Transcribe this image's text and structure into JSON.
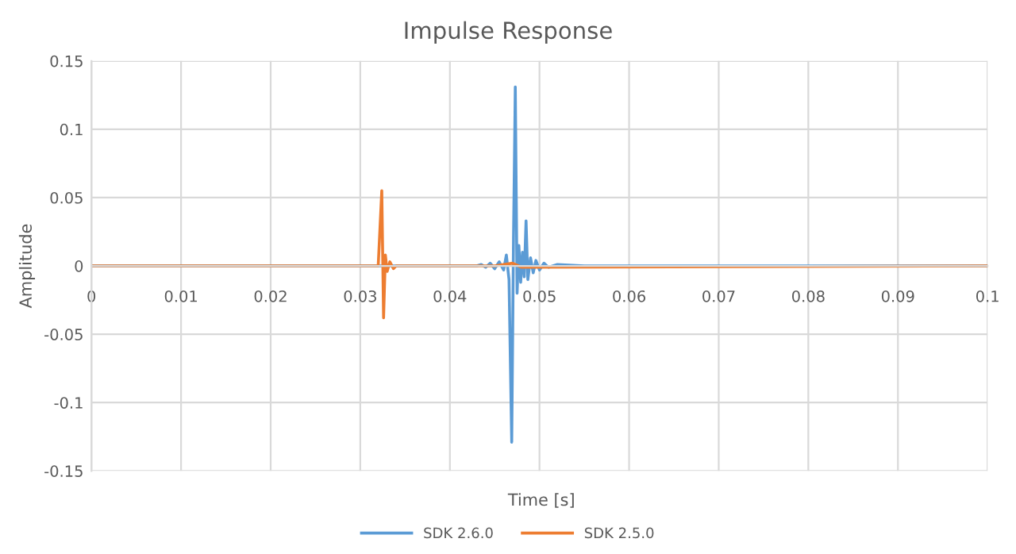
{
  "chart_data": {
    "type": "line",
    "title": "Impulse Response",
    "xlabel": "Time [s]",
    "ylabel": "Amplitude",
    "series": [
      {
        "name": "SDK 2.6.0",
        "color": "#5b9bd5",
        "x": [
          0,
          0.04,
          0.043,
          0.0435,
          0.044,
          0.0445,
          0.045,
          0.0455,
          0.046,
          0.0463,
          0.0466,
          0.0469,
          0.0471,
          0.0473,
          0.0475,
          0.0477,
          0.0479,
          0.0481,
          0.0483,
          0.0485,
          0.0487,
          0.049,
          0.0493,
          0.0496,
          0.05,
          0.0505,
          0.051,
          0.052,
          0.055,
          0.1
        ],
        "values": [
          0,
          0,
          0,
          0.001,
          -0.001,
          0.002,
          -0.002,
          0.003,
          -0.003,
          0.008,
          -0.01,
          -0.129,
          0.02,
          0.131,
          -0.02,
          0.015,
          -0.012,
          0.01,
          -0.008,
          0.033,
          -0.01,
          0.006,
          -0.005,
          0.004,
          -0.003,
          0.002,
          -0.001,
          0.001,
          0,
          0
        ]
      },
      {
        "name": "SDK 2.5.0",
        "color": "#ed7d31",
        "x": [
          0,
          0.032,
          0.0324,
          0.0326,
          0.0328,
          0.033,
          0.0333,
          0.0337,
          0.034,
          0.045,
          0.047,
          0.048,
          0.1
        ],
        "values": [
          0,
          0,
          0.055,
          -0.038,
          0.008,
          -0.004,
          0.003,
          -0.002,
          0,
          0,
          0.002,
          -0.001,
          0
        ]
      }
    ],
    "xlim": [
      0,
      0.1
    ],
    "xticks": [
      0,
      0.01,
      0.02,
      0.03,
      0.04,
      0.05,
      0.06,
      0.07,
      0.08,
      0.09,
      0.1
    ],
    "ylim": [
      -0.15,
      0.15
    ],
    "yticks": [
      -0.15,
      -0.1,
      -0.05,
      0,
      0.05,
      0.1,
      0.15
    ],
    "grid": true,
    "legend": "bottom",
    "marker": "none",
    "line_style": "solid"
  }
}
